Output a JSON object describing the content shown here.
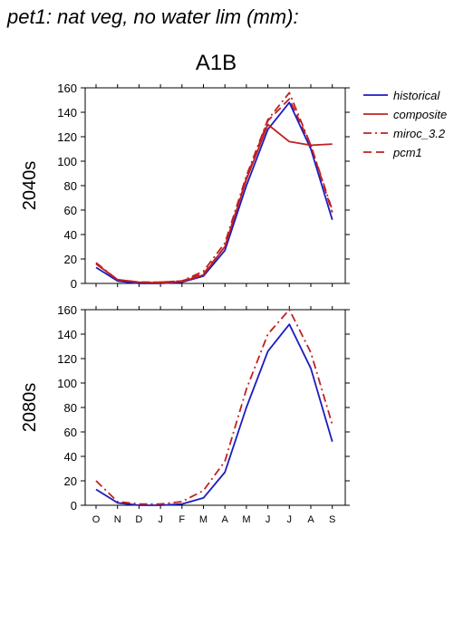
{
  "page": {
    "title": "pet1: nat veg, no water lim (mm):",
    "scenario": "A1B"
  },
  "colors": {
    "historical": "#1c1cc0",
    "models": "#c02020"
  },
  "legend": {
    "items": [
      {
        "label": "historical",
        "style": "solid",
        "color": "#1c1cc0"
      },
      {
        "label": "composite",
        "style": "solid",
        "color": "#c02020"
      },
      {
        "label": "miroc_3.2",
        "style": "dashdot",
        "color": "#c02020"
      },
      {
        "label": "pcm1",
        "style": "dashed",
        "color": "#c02020"
      }
    ]
  },
  "chart_data": [
    {
      "type": "line",
      "panel_label": "2040s",
      "categories": [
        "O",
        "N",
        "D",
        "J",
        "F",
        "M",
        "A",
        "M",
        "J",
        "J",
        "A",
        "S"
      ],
      "ylim": [
        0,
        160
      ],
      "yticks": [
        0,
        20,
        40,
        60,
        80,
        100,
        120,
        140,
        160
      ],
      "series": [
        {
          "name": "historical",
          "style": "solid",
          "color": "#1c1cc0",
          "values": [
            13,
            2,
            0,
            0,
            1,
            6,
            27,
            80,
            126,
            148,
            110,
            52
          ]
        },
        {
          "name": "composite",
          "style": "solid",
          "color": "#c02020",
          "values": [
            16,
            3,
            1,
            0.5,
            1.5,
            7,
            30,
            85,
            130,
            116,
            113,
            114
          ]
        },
        {
          "name": "miroc_3.2",
          "style": "dashdot",
          "color": "#c02020",
          "values": [
            17,
            3,
            1,
            1,
            2,
            10,
            33,
            88,
            134,
            156,
            113,
            60
          ]
        },
        {
          "name": "pcm1",
          "style": "dashed",
          "color": "#c02020",
          "values": [
            16,
            3,
            1,
            1,
            2,
            8,
            30,
            86,
            133,
            151,
            113,
            58
          ]
        }
      ]
    },
    {
      "type": "line",
      "panel_label": "2080s",
      "categories": [
        "O",
        "N",
        "D",
        "J",
        "F",
        "M",
        "A",
        "M",
        "J",
        "J",
        "A",
        "S"
      ],
      "ylim": [
        0,
        160
      ],
      "yticks": [
        0,
        20,
        40,
        60,
        80,
        100,
        120,
        140,
        160
      ],
      "series": [
        {
          "name": "historical",
          "style": "solid",
          "color": "#1c1cc0",
          "values": [
            13,
            2,
            0,
            0,
            1,
            6,
            27,
            80,
            126,
            148,
            112,
            52
          ]
        },
        {
          "name": "miroc_3.2",
          "style": "dashdot",
          "color": "#c02020",
          "values": [
            20,
            3,
            1,
            1,
            3,
            12,
            36,
            95,
            140,
            160,
            125,
            66
          ]
        }
      ]
    }
  ]
}
